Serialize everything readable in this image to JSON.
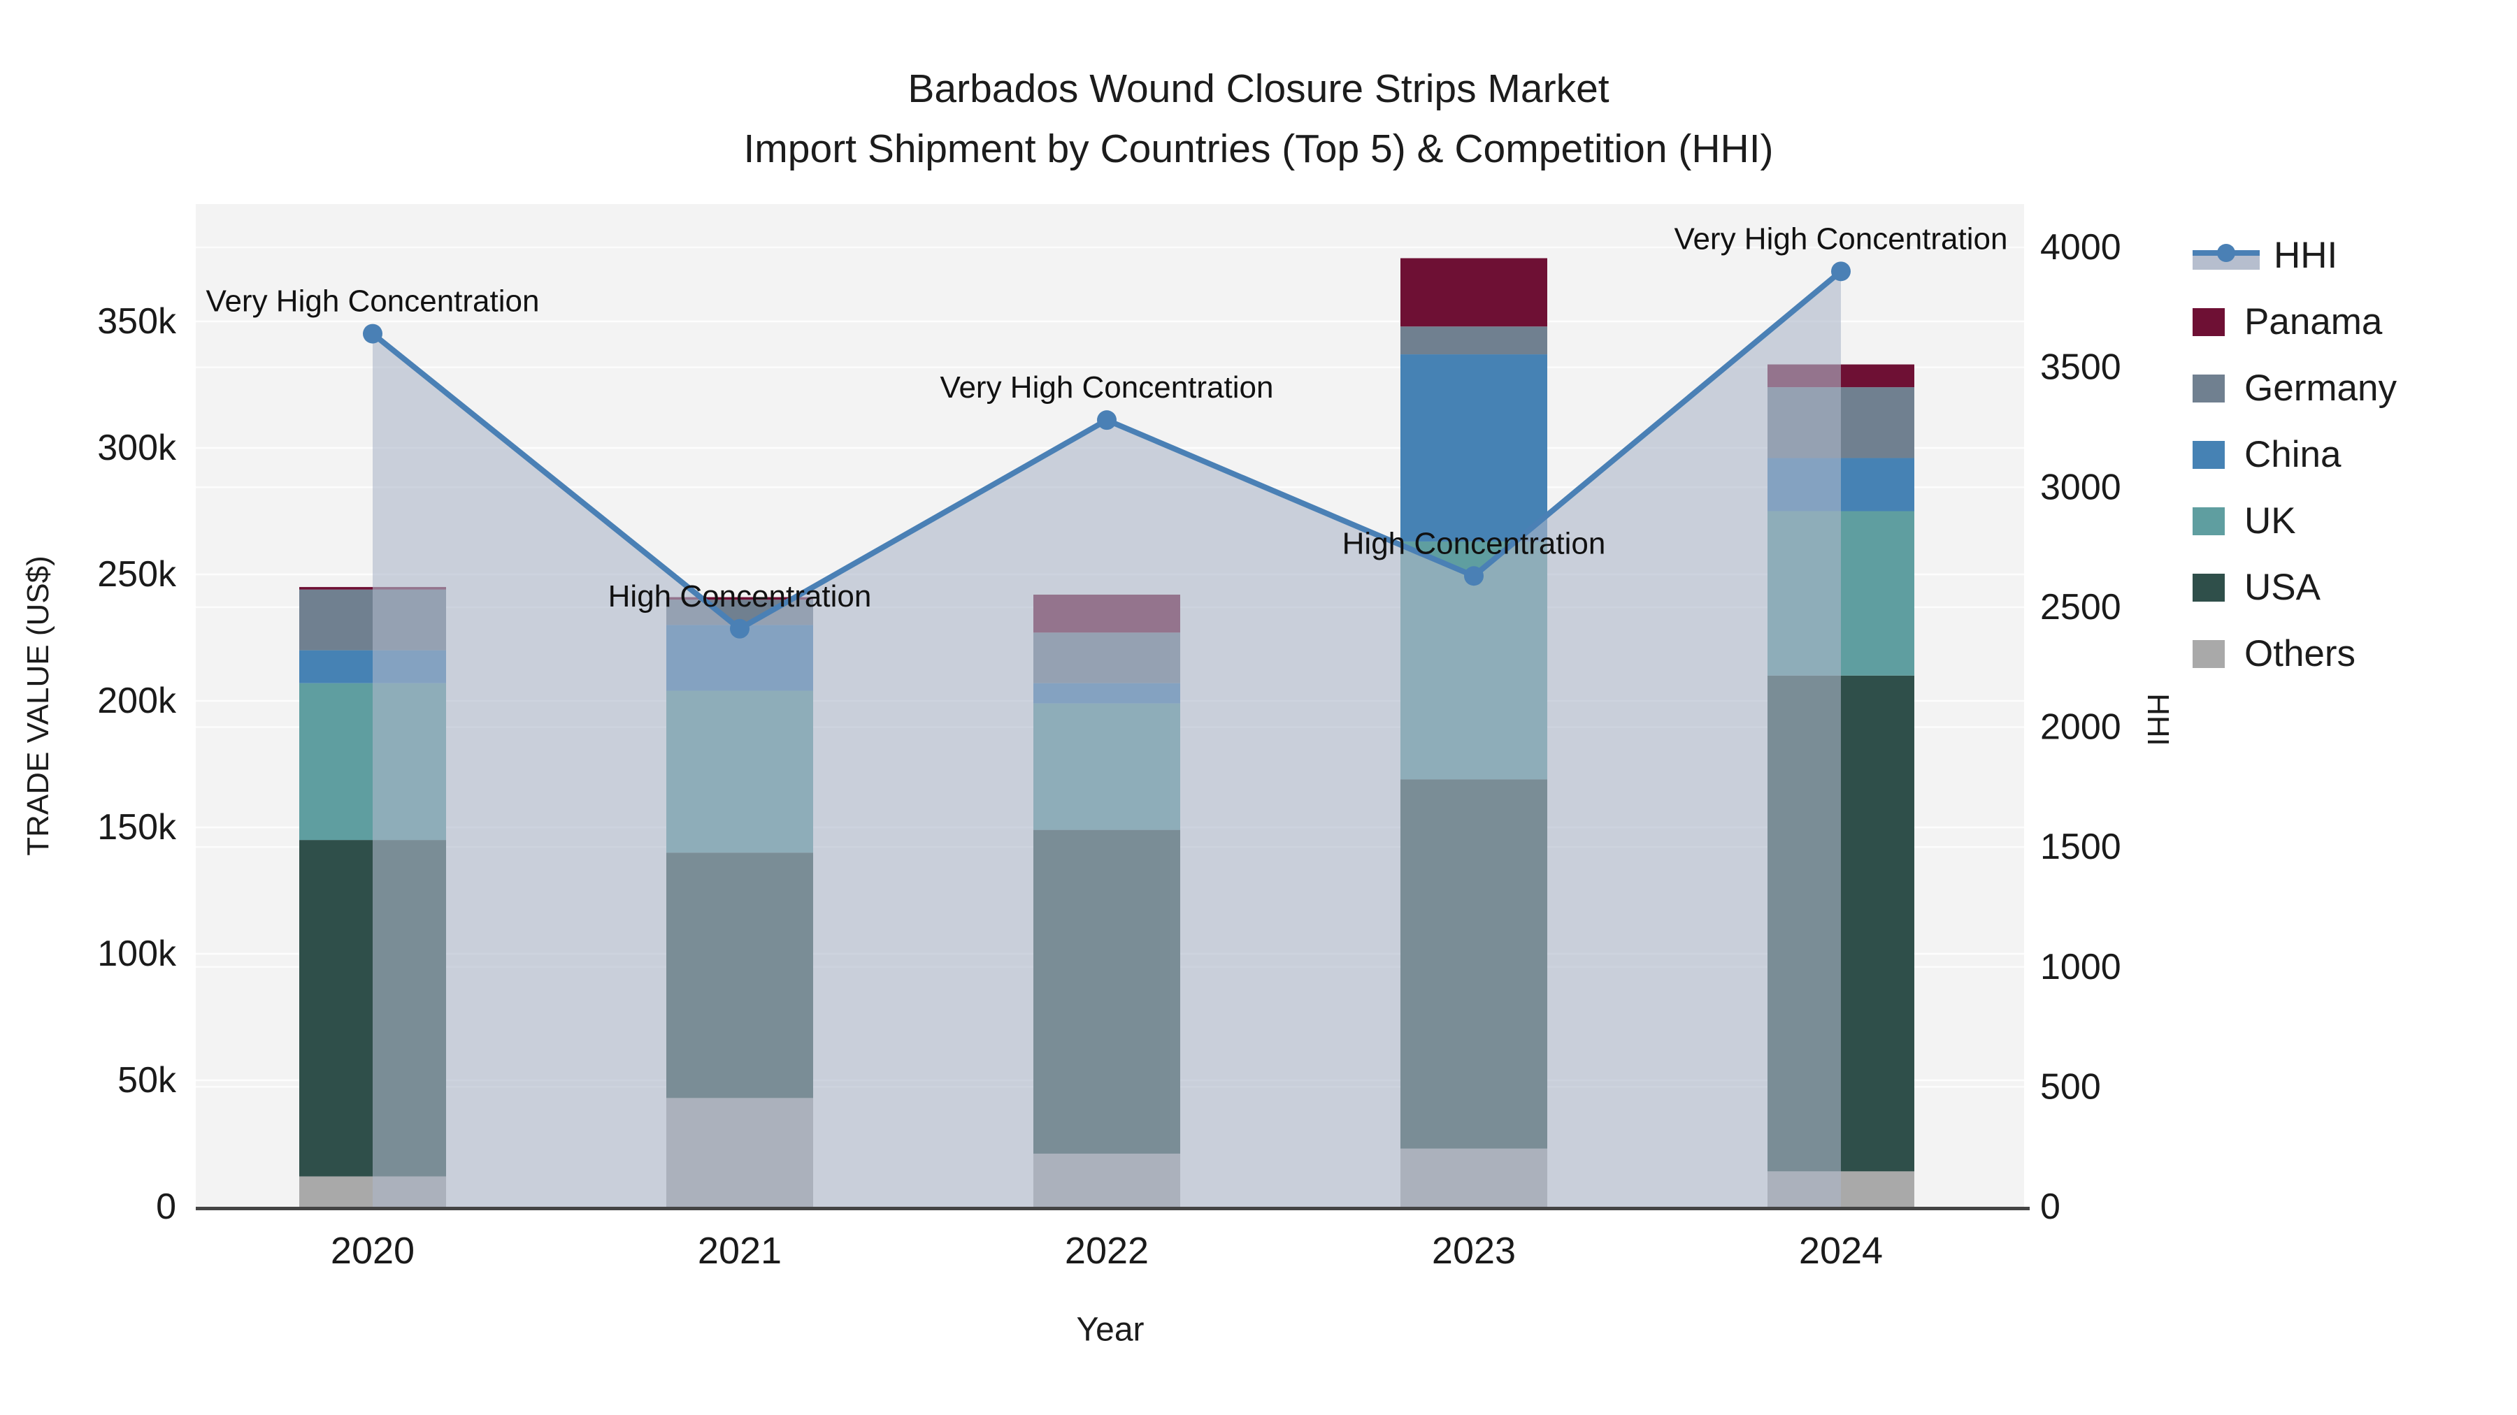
{
  "title": {
    "line1": "Barbados Wound Closure Strips Market",
    "line2": "Import Shipment by Countries (Top 5) & Competition (HHI)"
  },
  "axes": {
    "left_title": "TRADE VALUE (US$)",
    "bottom_title": "Year",
    "right_title": "HHI",
    "left_ticks": [
      "0",
      "50k",
      "100k",
      "150k",
      "200k",
      "250k",
      "300k",
      "350k"
    ],
    "right_ticks": [
      "0",
      "500",
      "1000",
      "1500",
      "2000",
      "2500",
      "3000",
      "3500",
      "4000"
    ]
  },
  "legend": {
    "items": [
      {
        "label": "HHI",
        "type": "line"
      },
      {
        "label": "Panama",
        "type": "box",
        "color": "#6E1034"
      },
      {
        "label": "Germany",
        "type": "box",
        "color": "#708090"
      },
      {
        "label": "China",
        "type": "box",
        "color": "#4682B4"
      },
      {
        "label": "UK",
        "type": "box",
        "color": "#5F9EA0"
      },
      {
        "label": "USA",
        "type": "box",
        "color": "#2F4F4A"
      },
      {
        "label": "Others",
        "type": "box",
        "color": "#A9A9A9"
      }
    ]
  },
  "colors": {
    "plot_background": "#F3F3F3",
    "gridline": "#FFFFFF",
    "axis_line": "#444444",
    "hhi_line": "#4A80B5",
    "hhi_area": "rgba(174,183,201,0.60)",
    "panama": "#6E1034",
    "germany": "#708090",
    "china": "#4682B4",
    "uk": "#5F9EA0",
    "usa": "#2F4F4A",
    "others": "#A9A9A9"
  },
  "chart_data": {
    "type": "bar+line",
    "title": "Barbados Wound Closure Strips Market — Import Shipment by Countries (Top 5) & Competition (HHI)",
    "categories": [
      "2020",
      "2021",
      "2022",
      "2023",
      "2024"
    ],
    "xlabel": "Year",
    "ylabel_left": "TRADE VALUE (US$)",
    "ylabel_right": "HHI",
    "values_unit": "thousand US$",
    "stack_order_bottom_to_top": [
      "Others",
      "USA",
      "UK",
      "China",
      "Germany",
      "Panama"
    ],
    "series": [
      {
        "name": "Others",
        "color": "#A9A9A9",
        "values": [
          12,
          43,
          21,
          23,
          14
        ]
      },
      {
        "name": "USA",
        "color": "#2F4F4A",
        "values": [
          133,
          97,
          128,
          146,
          196
        ]
      },
      {
        "name": "UK",
        "color": "#5F9EA0",
        "values": [
          62,
          64,
          50,
          94,
          65
        ]
      },
      {
        "name": "China",
        "color": "#4682B4",
        "values": [
          13,
          26,
          8,
          74,
          21
        ]
      },
      {
        "name": "Germany",
        "color": "#708090",
        "values": [
          24,
          10,
          20,
          11,
          28
        ]
      },
      {
        "name": "Panama",
        "color": "#6E1034",
        "values": [
          1,
          1,
          15,
          27,
          9
        ]
      }
    ],
    "bar_totals_k": [
      245,
      241,
      242,
      375,
      333
    ],
    "line_series": {
      "name": "HHI",
      "color": "#4A80B5",
      "area_color": "rgba(174,183,201,0.60)",
      "values": [
        3640,
        2410,
        3280,
        2630,
        3900
      ]
    },
    "annotations": [
      "Very High Concentration",
      "High Concentration",
      "Very High Concentration",
      "High Concentration",
      "Very High Concentration"
    ],
    "ylim_left": [
      0,
      396000
    ],
    "ylim_right": [
      0,
      4180
    ],
    "grid": true,
    "legend_position": "right"
  }
}
